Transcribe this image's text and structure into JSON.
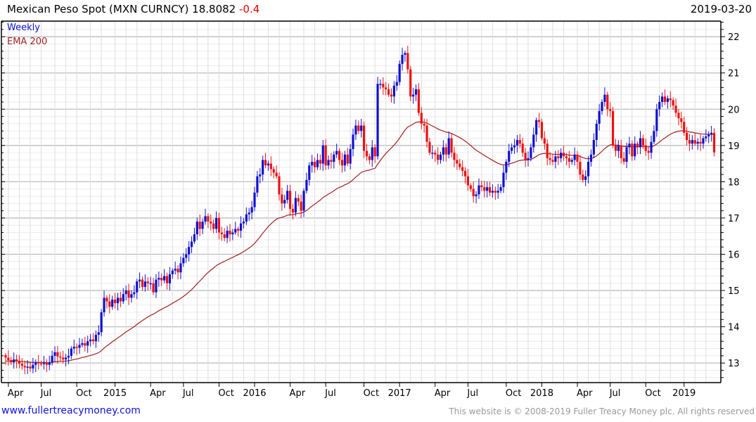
{
  "header": {
    "title": "Mexican Peso Spot (MXN CURNCY) 18.8082",
    "change": "-0.4",
    "date": "2019-03-20"
  },
  "legend": {
    "weekly": "Weekly",
    "ema": "EMA 200"
  },
  "footer": {
    "link": "www.fullertreacymoney.com",
    "copyright": "This website is © 2008-2019 Fuller Treacy Money plc. All rights reserved"
  },
  "colors": {
    "up": "#1010d0",
    "down": "#ee1010",
    "ema": "#a02020"
  },
  "chart_data": {
    "type": "candlestick",
    "title": "Mexican Peso Spot (MXN CURNCY)",
    "frequency": "weekly",
    "ylim": [
      12.46,
      22.43
    ],
    "yticks": [
      "13",
      "14",
      "15",
      "16",
      "17",
      "18",
      "19",
      "20",
      "21",
      "22"
    ],
    "xticks": [
      {
        "label": "Apr",
        "week": 1
      },
      {
        "label": "Jul",
        "week": 13
      },
      {
        "label": "Oct",
        "week": 26
      },
      {
        "label": "2015",
        "week": 40
      },
      {
        "label": "Apr",
        "week": 53
      },
      {
        "label": "Jul",
        "week": 65
      },
      {
        "label": "Oct",
        "week": 78
      },
      {
        "label": "2016",
        "week": 91
      },
      {
        "label": "Apr",
        "week": 104
      },
      {
        "label": "Jul",
        "week": 117
      },
      {
        "label": "Oct",
        "week": 131
      },
      {
        "label": "2017",
        "week": 144
      },
      {
        "label": "Apr",
        "week": 157
      },
      {
        "label": "Jul",
        "week": 169
      },
      {
        "label": "Oct",
        "week": 183
      },
      {
        "label": "2018",
        "week": 196
      },
      {
        "label": "Apr",
        "week": 209
      },
      {
        "label": "Jul",
        "week": 221
      },
      {
        "label": "Oct",
        "week": 234
      },
      {
        "label": "2019",
        "week": 248
      }
    ],
    "month_starts": [
      1,
      5,
      9,
      13,
      18,
      22,
      26,
      31,
      35,
      40,
      44,
      48,
      53,
      57,
      61,
      65,
      70,
      74,
      78,
      83,
      87,
      91,
      96,
      100,
      104,
      109,
      113,
      117,
      122,
      126,
      131,
      135,
      139,
      144,
      148,
      152,
      157,
      161,
      165,
      169,
      174,
      178,
      183,
      187,
      191,
      196,
      200,
      204,
      209,
      213,
      217,
      221,
      225,
      229,
      234,
      239,
      243,
      248,
      252,
      256
    ],
    "ema_period_weeks": 40,
    "closes": [
      13.15,
      13.08,
      13.02,
      13.1,
      13.05,
      12.98,
      12.92,
      12.88,
      12.9,
      12.85,
      12.95,
      13.02,
      12.99,
      12.98,
      13.0,
      12.95,
      13.02,
      13.2,
      13.3,
      13.18,
      13.15,
      13.1,
      13.15,
      13.2,
      13.4,
      13.45,
      13.42,
      13.5,
      13.55,
      13.48,
      13.6,
      13.65,
      13.6,
      13.78,
      13.85,
      14.4,
      14.8,
      14.7,
      14.55,
      14.75,
      14.65,
      14.8,
      14.7,
      14.9,
      15.0,
      14.8,
      14.9,
      14.95,
      15.25,
      15.3,
      15.1,
      15.25,
      15.2,
      15.2,
      14.95,
      15.3,
      15.35,
      15.28,
      15.4,
      15.2,
      15.45,
      15.55,
      15.6,
      15.5,
      15.75,
      15.9,
      16.0,
      16.2,
      16.35,
      16.55,
      16.9,
      16.7,
      16.9,
      17.05,
      16.9,
      16.85,
      16.7,
      17.0,
      16.6,
      16.55,
      16.45,
      16.65,
      16.55,
      16.6,
      16.7,
      16.65,
      16.85,
      16.9,
      17.1,
      17.15,
      17.3,
      17.7,
      18.15,
      18.2,
      18.6,
      18.45,
      18.5,
      18.35,
      18.25,
      18.15,
      17.65,
      17.4,
      17.5,
      17.75,
      17.25,
      17.15,
      17.55,
      17.45,
      17.2,
      17.75,
      18.05,
      18.45,
      18.55,
      18.4,
      18.6,
      18.5,
      19.0,
      18.45,
      18.6,
      18.55,
      18.75,
      18.85,
      18.6,
      18.45,
      18.75,
      18.5,
      18.9,
      19.3,
      19.55,
      19.4,
      19.55,
      18.85,
      18.7,
      18.6,
      18.95,
      18.7,
      20.7,
      20.7,
      20.6,
      20.55,
      20.4,
      20.35,
      20.65,
      20.75,
      21.25,
      21.5,
      21.55,
      21.1,
      20.35,
      20.4,
      20.55,
      19.9,
      19.6,
      19.55,
      19.1,
      18.8,
      18.8,
      18.75,
      18.6,
      18.75,
      18.95,
      18.75,
      19.2,
      18.8,
      18.6,
      18.5,
      18.4,
      18.3,
      18.15,
      17.9,
      17.8,
      17.6,
      17.65,
      17.9,
      17.85,
      17.75,
      17.85,
      17.7,
      17.75,
      17.7,
      17.75,
      17.85,
      18.25,
      18.55,
      18.85,
      18.95,
      19.0,
      19.15,
      19.05,
      18.8,
      18.6,
      18.65,
      18.95,
      19.3,
      19.7,
      19.65,
      19.2,
      19.05,
      18.65,
      18.6,
      18.55,
      18.7,
      18.65,
      18.8,
      18.7,
      18.65,
      18.55,
      18.6,
      18.75,
      18.55,
      18.2,
      18.05,
      18.15,
      18.55,
      18.75,
      19.15,
      19.6,
      19.95,
      20.2,
      20.4,
      20.0,
      19.95,
      19.0,
      18.85,
      19.0,
      18.65,
      18.55,
      18.95,
      19.05,
      18.7,
      19.05,
      18.95,
      19.2,
      19.0,
      18.85,
      18.8,
      19.1,
      19.4,
      20.0,
      20.2,
      20.35,
      20.2,
      20.3,
      20.25,
      20.1,
      19.9,
      19.75,
      19.65,
      19.35,
      19.15,
      19.05,
      19.15,
      19.05,
      19.1,
      19.05,
      19.2,
      19.25,
      19.3,
      19.35,
      18.81
    ]
  }
}
